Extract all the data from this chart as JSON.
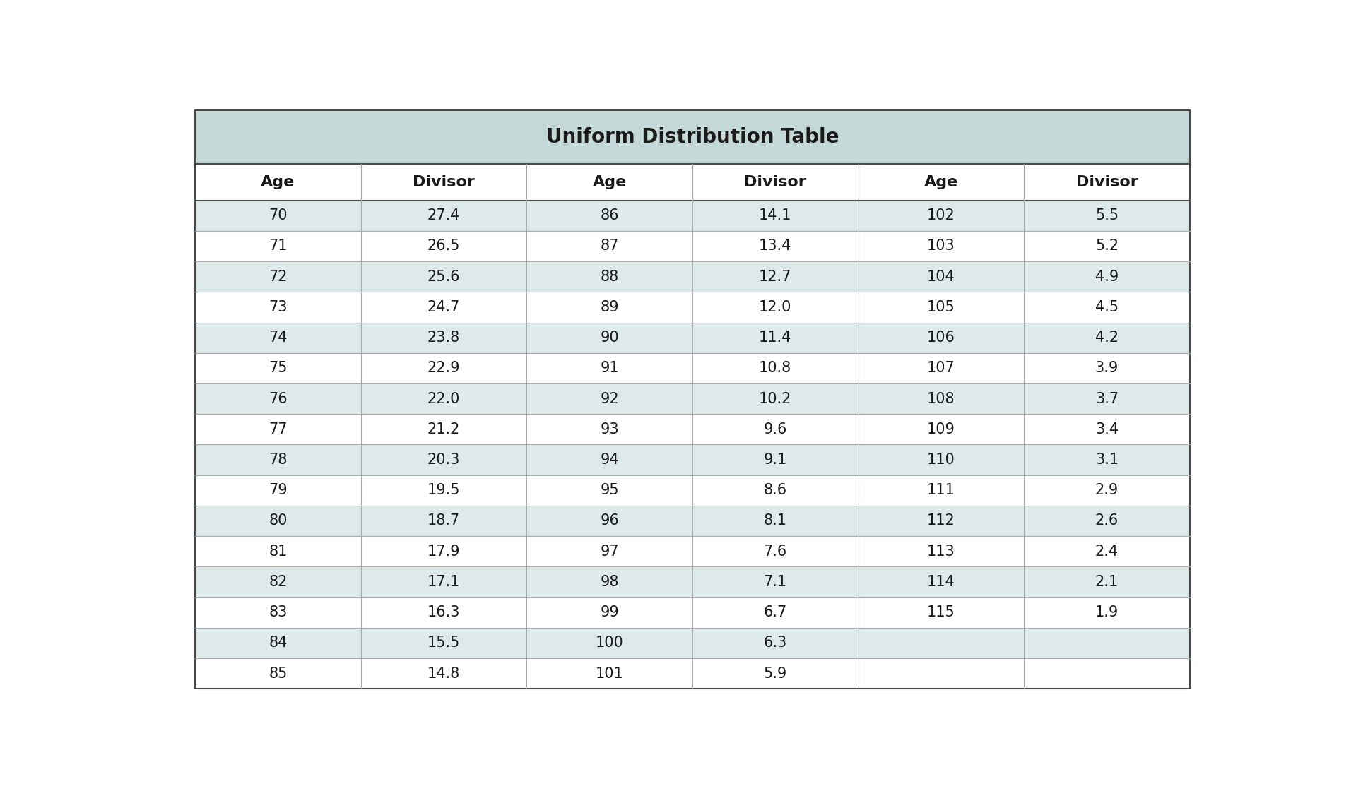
{
  "title": "Uniform Distribution Table",
  "title_bg": "#c5d8d8",
  "header_bg": "#ffffff",
  "row_bg_odd": "#deeaea",
  "row_bg_even": "#ffffff",
  "col_headers": [
    "Age",
    "Divisor",
    "Age",
    "Divisor",
    "Age",
    "Divisor"
  ],
  "rows": [
    [
      "70",
      "27.4",
      "86",
      "14.1",
      "102",
      "5.5"
    ],
    [
      "71",
      "26.5",
      "87",
      "13.4",
      "103",
      "5.2"
    ],
    [
      "72",
      "25.6",
      "88",
      "12.7",
      "104",
      "4.9"
    ],
    [
      "73",
      "24.7",
      "89",
      "12.0",
      "105",
      "4.5"
    ],
    [
      "74",
      "23.8",
      "90",
      "11.4",
      "106",
      "4.2"
    ],
    [
      "75",
      "22.9",
      "91",
      "10.8",
      "107",
      "3.9"
    ],
    [
      "76",
      "22.0",
      "92",
      "10.2",
      "108",
      "3.7"
    ],
    [
      "77",
      "21.2",
      "93",
      "9.6",
      "109",
      "3.4"
    ],
    [
      "78",
      "20.3",
      "94",
      "9.1",
      "110",
      "3.1"
    ],
    [
      "79",
      "19.5",
      "95",
      "8.6",
      "111",
      "2.9"
    ],
    [
      "80",
      "18.7",
      "96",
      "8.1",
      "112",
      "2.6"
    ],
    [
      "81",
      "17.9",
      "97",
      "7.6",
      "113",
      "2.4"
    ],
    [
      "82",
      "17.1",
      "98",
      "7.1",
      "114",
      "2.1"
    ],
    [
      "83",
      "16.3",
      "99",
      "6.7",
      "115",
      "1.9"
    ],
    [
      "84",
      "15.5",
      "100",
      "6.3",
      "",
      ""
    ],
    [
      "85",
      "14.8",
      "101",
      "5.9",
      "",
      ""
    ]
  ],
  "outer_border_color": "#4a4a4a",
  "inner_line_color": "#aaaaaa",
  "text_color": "#1a1a1a",
  "header_text_color": "#1a1a1a",
  "title_font_size": 20,
  "header_font_size": 16,
  "data_font_size": 15
}
